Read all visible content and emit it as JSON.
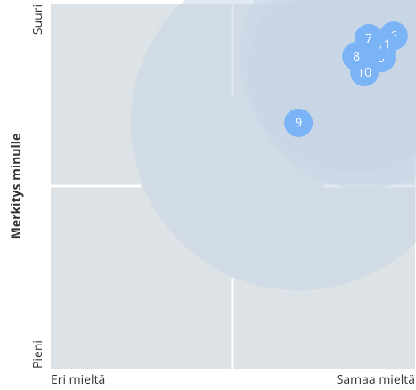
{
  "chart_data": {
    "type": "scatter",
    "y_label": "Merkitys minulle",
    "y_low_label": "Pieni",
    "y_high_label": "Suuri",
    "x_low_label": "Eri mieltä",
    "x_high_label": "Samaa mieltä",
    "labels": [
      "5",
      "6",
      "10",
      "8",
      "11",
      "7",
      "9"
    ],
    "x": [
      90.7,
      94.1,
      86.1,
      83.9,
      91.4,
      87.3,
      68
    ],
    "values": [
      85.3,
      91.4,
      81.4,
      85.8,
      89,
      90.7,
      67.5
    ],
    "sizes": [
      7,
      6,
      8,
      8,
      6,
      6,
      11.5
    ],
    "xlim": [
      0,
      100
    ],
    "ylim": [
      0,
      100
    ],
    "color": "#7ab4f7",
    "halo_color": "#c6d5e6",
    "background": "#dce2e5"
  }
}
